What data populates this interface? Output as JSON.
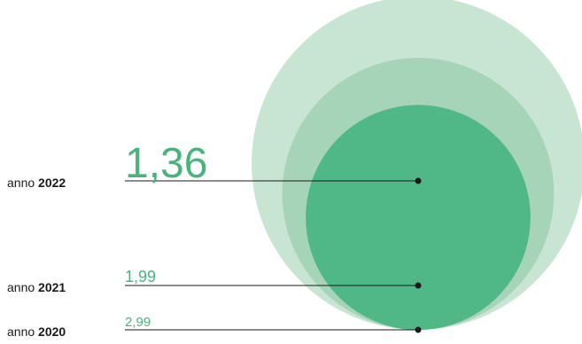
{
  "chart_data": {
    "type": "bubble",
    "title": "",
    "series": [
      {
        "label_prefix": "anno",
        "year": "2022",
        "value": 1.36,
        "value_label": "1,36"
      },
      {
        "label_prefix": "anno",
        "year": "2021",
        "value": 1.99,
        "value_label": "1,99"
      },
      {
        "label_prefix": "anno",
        "year": "2020",
        "value": 2.99,
        "value_label": "2,99"
      }
    ],
    "colors": {
      "2022": "#50b786",
      "2021": "#a6d4b9",
      "2020": "#c8e4d2",
      "value_text": "#4bb27e",
      "line": "#1a1a1a"
    }
  }
}
